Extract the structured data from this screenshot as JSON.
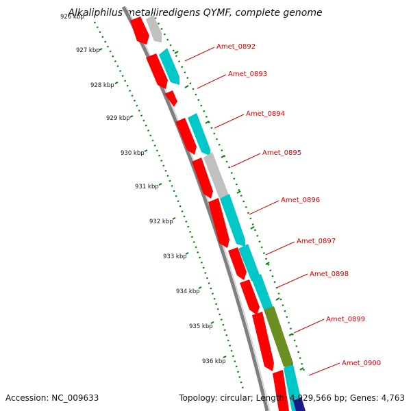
{
  "title": "Alkaliphilus metalliredigens QYMF, complete genome",
  "accession": "Accession: NC_009633",
  "topology": "Topology: circular; Length: 4,929,566 bp; Genes: 4,763",
  "kbp_labels": [
    "926 kbp",
    "927 kbp",
    "928 kbp",
    "929 kbp",
    "930 kbp",
    "931 kbp",
    "932 kbp",
    "933 kbp",
    "934 kbp",
    "935 kbp",
    "936 kbp"
  ],
  "gene_labels": [
    "Amet_0892",
    "Amet_0893",
    "Amet_0894",
    "Amet_0895",
    "Amet_0896",
    "Amet_0897",
    "Amet_0898",
    "Amet_0899",
    "Amet_0900"
  ],
  "colors": {
    "forward_cds": "#ff0000",
    "reverse_cds_blue": "#00c8c8",
    "reverse_cds_gray": "#c0c0c0",
    "reverse_cds_olive": "#6b8e23",
    "reverse_cds_navy": "#1a1a8c",
    "backbone": "#808080",
    "tick_green": "#008000",
    "label_red": "#d40000"
  }
}
